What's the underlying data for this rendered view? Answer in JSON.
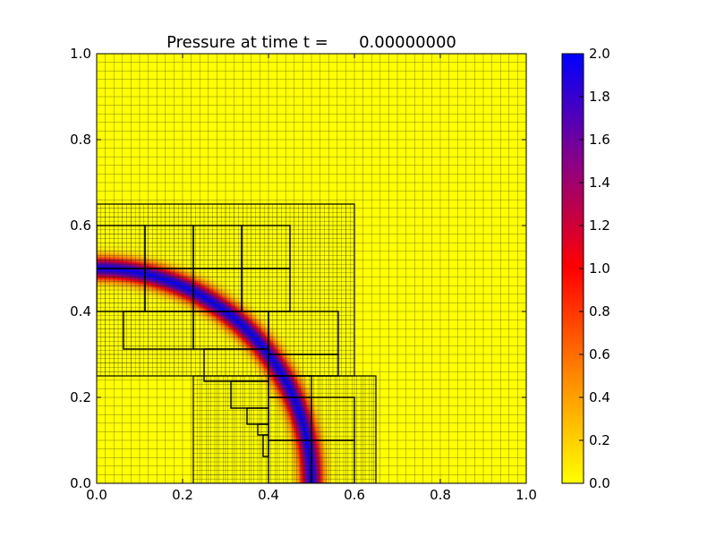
{
  "chart_data": [
    {
      "type": "heatmap",
      "title": "Pressure at time t =      0.00000000",
      "xlabel": "",
      "ylabel": "",
      "xlim": [
        0.0,
        1.0
      ],
      "ylim": [
        0.0,
        1.0
      ],
      "xticks": [
        "0.0",
        "0.2",
        "0.4",
        "0.6",
        "0.8",
        "1.0"
      ],
      "yticks": [
        "0.0",
        "0.2",
        "0.4",
        "0.6",
        "0.8",
        "1.0"
      ],
      "background_value": 0.0,
      "pressure_ring": {
        "center": [
          0.0,
          0.0
        ],
        "radius": 0.5,
        "width": 0.025,
        "peak_value": 2.0
      },
      "grid_levels": [
        {
          "level": 1,
          "region": [
            0.0,
            1.0,
            0.0,
            1.0
          ],
          "cell_size": 0.02
        },
        {
          "level": 2,
          "patches": [
            [
              0.0,
              0.6,
              0.25,
              0.65
            ],
            [
              0.225,
              0.65,
              0.0,
              0.25
            ]
          ],
          "cell_size": 0.01
        },
        {
          "level": 3,
          "patches": [
            [
              0.0,
              0.1125,
              0.5,
              0.6
            ],
            [
              0.1125,
              0.225,
              0.5,
              0.6
            ],
            [
              0.225,
              0.3375,
              0.5,
              0.6
            ],
            [
              0.3375,
              0.45,
              0.5,
              0.6
            ],
            [
              0.0,
              0.1125,
              0.4,
              0.5
            ],
            [
              0.1125,
              0.225,
              0.4,
              0.5
            ],
            [
              0.225,
              0.3375,
              0.4,
              0.5
            ],
            [
              0.3375,
              0.45,
              0.4,
              0.5
            ],
            [
              0.0625,
              0.225,
              0.3125,
              0.4
            ],
            [
              0.225,
              0.4,
              0.3125,
              0.4
            ],
            [
              0.4,
              0.5625,
              0.3,
              0.4
            ],
            [
              0.25,
              0.4,
              0.2375,
              0.3125
            ],
            [
              0.4,
              0.5625,
              0.25,
              0.3
            ],
            [
              0.3125,
              0.4,
              0.175,
              0.2375
            ],
            [
              0.4,
              0.5,
              0.2,
              0.25
            ],
            [
              0.5,
              0.6,
              0.1,
              0.2
            ],
            [
              0.35,
              0.4,
              0.1375,
              0.175
            ],
            [
              0.375,
              0.4,
              0.1125,
              0.1375
            ],
            [
              0.3875,
              0.4,
              0.0625,
              0.1125
            ],
            [
              0.4,
              0.5,
              0.1,
              0.2
            ],
            [
              0.4,
              0.5,
              0.0,
              0.1
            ],
            [
              0.5,
              0.6,
              0.0,
              0.1
            ]
          ],
          "cell_size": 0.005
        }
      ]
    },
    {
      "type": "colorbar",
      "range": [
        0.0,
        2.0
      ],
      "ticks": [
        "0.0",
        "0.2",
        "0.4",
        "0.6",
        "0.8",
        "1.0",
        "1.2",
        "1.4",
        "1.6",
        "1.8",
        "2.0"
      ],
      "colormap": [
        {
          "value": 0.0,
          "color": "#ffff00"
        },
        {
          "value": 0.5,
          "color": "#ff8800"
        },
        {
          "value": 1.0,
          "color": "#ff0000"
        },
        {
          "value": 1.5,
          "color": "#880088"
        },
        {
          "value": 2.0,
          "color": "#0000ff"
        }
      ]
    }
  ]
}
